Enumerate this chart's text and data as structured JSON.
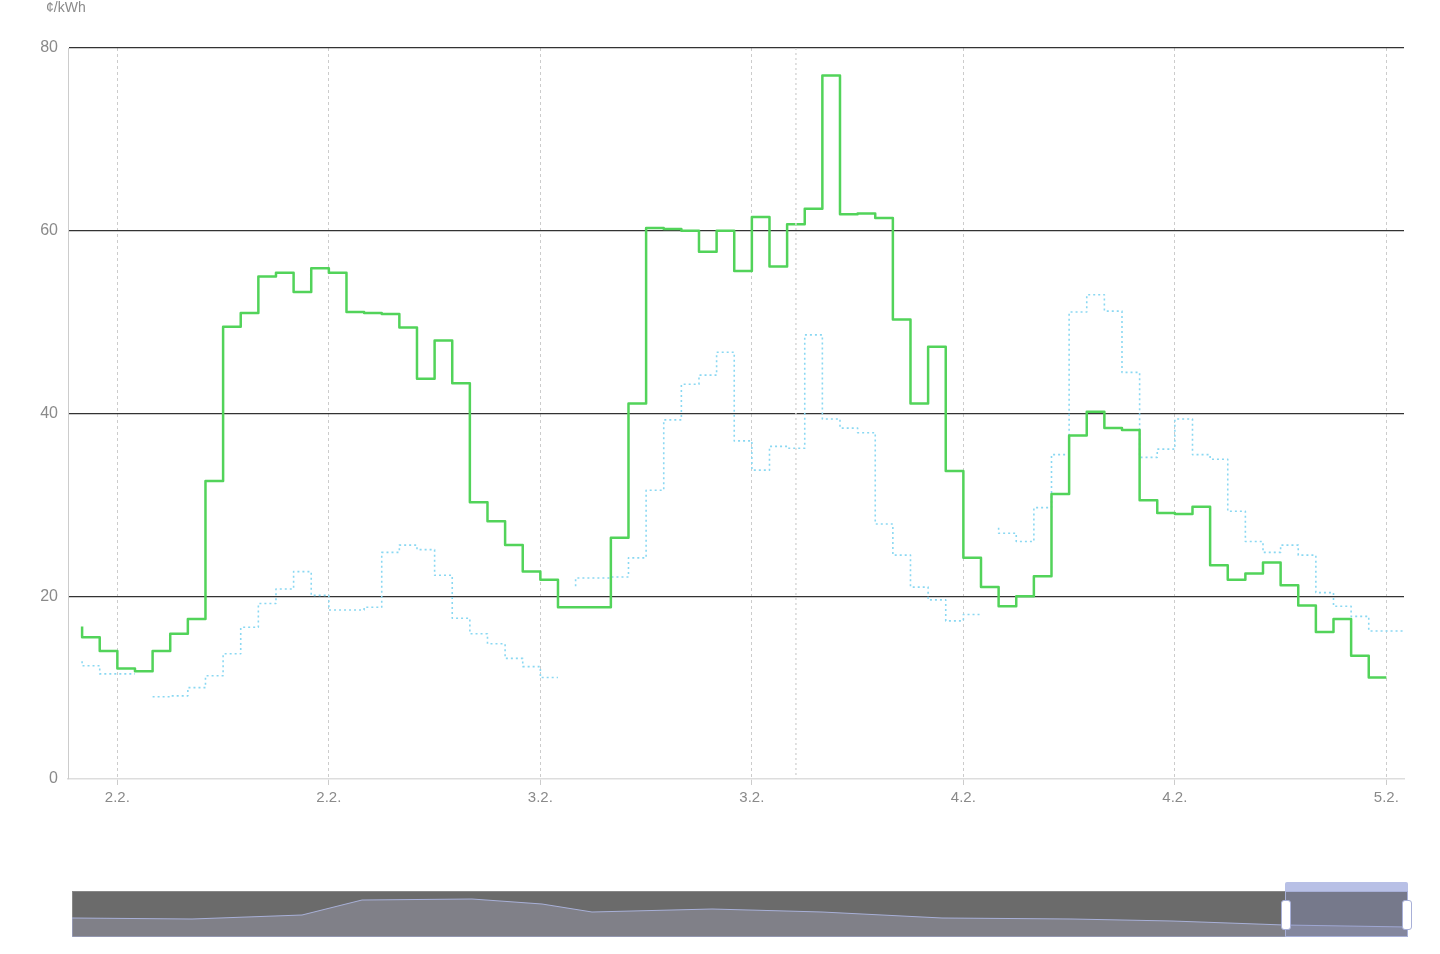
{
  "chart_data": {
    "type": "step",
    "ylabel": "¢/kWh",
    "x": [
      "--02-01T22:00",
      "--02-01T23:00",
      "--02-02T00:00",
      "--02-02T01:00",
      "--02-02T02:00",
      "--02-02T03:00",
      "--02-02T04:00",
      "--02-02T05:00",
      "--02-02T06:00",
      "--02-02T07:00",
      "--02-02T08:00",
      "--02-02T09:00",
      "--02-02T10:00",
      "--02-02T11:00",
      "--02-02T12:00",
      "--02-02T13:00",
      "--02-02T14:00",
      "--02-02T15:00",
      "--02-02T16:00",
      "--02-02T17:00",
      "--02-02T18:00",
      "--02-02T19:00",
      "--02-02T20:00",
      "--02-02T21:00",
      "--02-02T22:00",
      "--02-02T23:00",
      "--02-03T00:00",
      "--02-03T01:00",
      "--02-03T02:00",
      "--02-03T03:00",
      "--02-03T04:00",
      "--02-03T05:00",
      "--02-03T06:00",
      "--02-03T07:00",
      "--02-03T08:00",
      "--02-03T09:00",
      "--02-03T10:00",
      "--02-03T11:00",
      "--02-03T12:00",
      "--02-03T13:00",
      "--02-03T14:00",
      "--02-03T15:00",
      "--02-03T16:00",
      "--02-03T17:00",
      "--02-03T18:00",
      "--02-03T19:00",
      "--02-03T20:00",
      "--02-03T21:00",
      "--02-03T22:00",
      "--02-03T23:00",
      "--02-04T00:00",
      "--02-04T01:00",
      "--02-04T02:00",
      "--02-04T03:00",
      "--02-04T04:00",
      "--02-04T05:00",
      "--02-04T06:00",
      "--02-04T07:00",
      "--02-04T08:00",
      "--02-04T09:00",
      "--02-04T10:00",
      "--02-04T11:00",
      "--02-04T12:00",
      "--02-04T13:00",
      "--02-04T14:00",
      "--02-04T15:00",
      "--02-04T16:00",
      "--02-04T17:00",
      "--02-04T18:00",
      "--02-04T19:00",
      "--02-04T20:00",
      "--02-04T21:00",
      "--02-04T22:00",
      "--02-04T23:00",
      "--02-05T00:00"
    ],
    "series": [
      {
        "color": "#52d35a",
        "line_style": "solid",
        "values": [
          16.7,
          15.5,
          14.0,
          12.1,
          11.8,
          14.0,
          15.9,
          17.5,
          32.6,
          49.5,
          51.0,
          55.0,
          55.4,
          53.3,
          55.9,
          55.4,
          51.1,
          51.0,
          50.9,
          49.4,
          43.8,
          48.0,
          43.3,
          30.3,
          28.2,
          25.6,
          22.7,
          21.8,
          18.8,
          18.8,
          18.8,
          26.4,
          41.1,
          60.3,
          60.2,
          60.0,
          57.7,
          60.0,
          55.6,
          61.5,
          56.1,
          60.7,
          62.4,
          77.0,
          61.8,
          61.9,
          61.4,
          50.3,
          41.1,
          47.3,
          33.7,
          24.2,
          21.0,
          18.9,
          20.0,
          22.2,
          31.2,
          37.6,
          40.2,
          38.4,
          38.2,
          30.5,
          29.1,
          29.0,
          29.8,
          23.4,
          21.8,
          22.5,
          23.7,
          21.2,
          19.0,
          16.1,
          17.5,
          13.5,
          11.1
        ]
      },
      {
        "color": "#8ad8f2",
        "line_style": "dotted",
        "x": [
          "--02-01T22:00",
          "--02-01T23:00",
          "--02-02T00:00",
          "--02-02T01:00",
          "--02-02T01:30",
          "--02-02T02:00",
          "--02-02T03:00",
          "--02-02T04:00",
          "--02-02T05:00",
          "--02-02T06:00",
          "--02-02T07:00",
          "--02-02T08:00",
          "--02-02T09:00",
          "--02-02T10:00",
          "--02-02T11:00",
          "--02-02T12:00",
          "--02-02T13:00",
          "--02-02T14:00",
          "--02-02T15:00",
          "--02-02T16:00",
          "--02-02T17:00",
          "--02-02T18:00",
          "--02-02T19:00",
          "--02-02T20:00",
          "--02-02T21:00",
          "--02-02T22:00",
          "--02-02T23:00",
          "--02-03T00:00",
          "--02-03T01:00",
          "--02-03T01:30",
          "--02-03T02:00",
          "--02-03T03:00",
          "--02-03T04:00",
          "--02-03T05:00",
          "--02-03T06:00",
          "--02-03T07:00",
          "--02-03T08:00",
          "--02-03T09:00",
          "--02-03T10:00",
          "--02-03T11:00",
          "--02-03T12:00",
          "--02-03T13:00",
          "--02-03T14:00",
          "--02-03T15:00",
          "--02-03T16:00",
          "--02-03T17:00",
          "--02-03T18:00",
          "--02-03T19:00",
          "--02-03T20:00",
          "--02-03T21:00",
          "--02-03T22:00",
          "--02-03T23:00",
          "--02-04T00:00",
          "--02-04T01:00",
          "--02-04T01:30",
          "--02-04T02:00",
          "--02-04T03:00",
          "--02-04T04:00",
          "--02-04T05:00",
          "--02-04T06:00",
          "--02-04T07:00",
          "--02-04T08:00",
          "--02-04T09:00",
          "--02-04T10:00",
          "--02-04T11:00",
          "--02-04T12:00",
          "--02-04T13:00",
          "--02-04T14:00",
          "--02-04T15:00",
          "--02-04T16:00",
          "--02-04T17:00",
          "--02-04T18:00",
          "--02-04T19:00",
          "--02-04T20:00",
          "--02-04T21:00",
          "--02-04T22:00",
          "--02-04T23:00",
          "--02-05T00:00",
          "--02-05T01:00"
        ],
        "values": [
          12.9,
          12.4,
          11.5,
          11.5,
          null,
          9.0,
          9.0,
          9.1,
          10.0,
          11.3,
          13.7,
          16.6,
          19.2,
          20.8,
          22.7,
          20.1,
          18.5,
          18.5,
          18.8,
          24.8,
          25.6,
          25.1,
          22.3,
          17.6,
          15.9,
          14.8,
          13.2,
          12.3,
          11.1,
          null,
          21.1,
          22.0,
          22.0,
          22.1,
          24.2,
          31.6,
          39.3,
          43.2,
          44.2,
          46.7,
          37.0,
          33.8,
          36.4,
          36.2,
          48.6,
          39.4,
          38.4,
          37.9,
          27.9,
          24.5,
          21.0,
          19.6,
          17.3,
          18.0,
          null,
          27.5,
          26.9,
          26.0,
          29.7,
          35.5,
          51.1,
          53.0,
          51.2,
          44.5,
          35.2,
          36.1,
          39.4,
          35.5,
          35.0,
          29.3,
          26.0,
          24.8,
          25.6,
          24.5,
          20.4,
          18.9,
          17.8,
          16.2,
          16.2
        ]
      }
    ],
    "xlim": [
      "--02-01T21:12",
      "--02-05T01:00"
    ],
    "xticks": [
      {
        "value": "--02-02T00:00",
        "label": "2.2."
      },
      {
        "value": "--02-02T12:00",
        "label": "2.2."
      },
      {
        "value": "--02-03T00:00",
        "label": "3.2."
      },
      {
        "value": "--02-03T12:00",
        "label": "3.2."
      },
      {
        "value": "--02-04T00:00",
        "label": "4.2."
      },
      {
        "value": "--02-04T12:00",
        "label": "4.2."
      },
      {
        "value": "--02-05T00:00",
        "label": "5.2."
      }
    ],
    "ylim": [
      0,
      80
    ],
    "yticks": [
      0,
      20,
      40,
      60,
      80
    ],
    "ref_lines": [
      {
        "axis": "x",
        "value": "--02-03T14:30",
        "color": "#d8d8d8",
        "line_style": "dotted"
      }
    ],
    "grid": true,
    "legend": false,
    "marker": "none"
  }
}
